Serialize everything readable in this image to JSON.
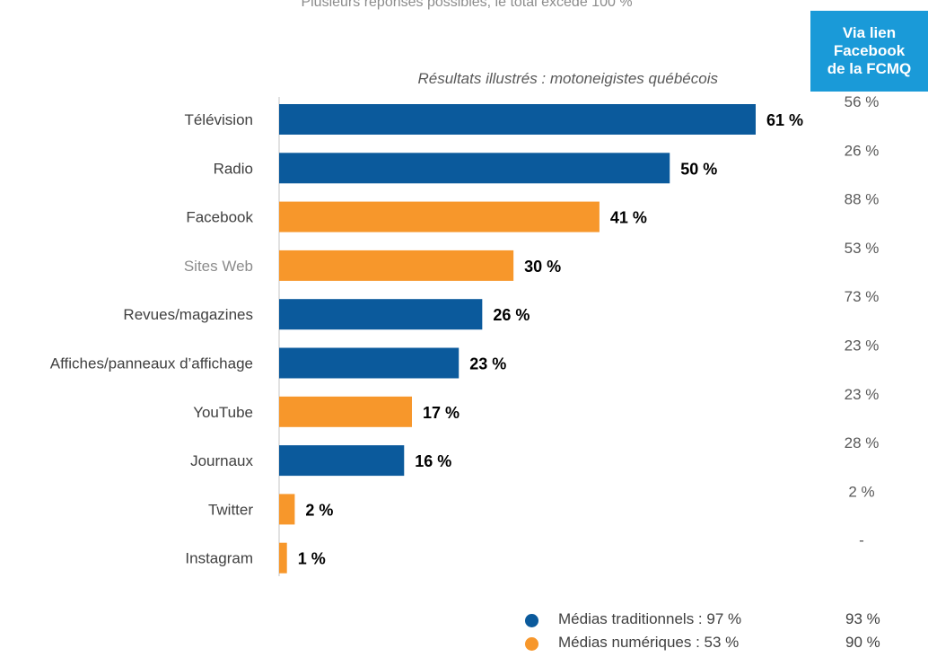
{
  "header": {
    "note": "Plusieurs réponses possibles, le total excède 100 %",
    "subtitle": "Résultats illustrés : motoneigistes québécois",
    "fb_box_lines": [
      "Via lien",
      "Facebook",
      "de la FCMQ"
    ]
  },
  "colors": {
    "traditional": "#0b5a9c",
    "digital": "#f7972b",
    "fb_box": "#1a9ad8"
  },
  "chart_data": {
    "type": "bar",
    "orientation": "horizontal",
    "categories": [
      "Télévision",
      "Radio",
      "Facebook",
      "Sites Web",
      "Revues/magazines",
      "Affiches/panneaux d’affichage",
      "YouTube",
      "Journaux",
      "Twitter",
      "Instagram"
    ],
    "values": [
      61,
      50,
      41,
      30,
      26,
      23,
      17,
      16,
      2,
      1
    ],
    "value_labels": [
      "61 %",
      "50 %",
      "41 %",
      "30 %",
      "26 %",
      "23 %",
      "17 %",
      "16 %",
      "2 %",
      "1 %"
    ],
    "groups": [
      "traditional",
      "traditional",
      "digital",
      "digital",
      "traditional",
      "traditional",
      "digital",
      "traditional",
      "digital",
      "digital"
    ],
    "facebook_column": [
      "56 %",
      "26 %",
      "88 %",
      "53 %",
      "73 %",
      "23 %",
      "23 %",
      "28 %",
      "2 %",
      "-"
    ],
    "xlim": [
      0,
      61
    ],
    "grid": false
  },
  "legend": {
    "items": [
      {
        "label": "Médias traditionnels : 97 %",
        "facebook_value": "93 %",
        "group": "traditional"
      },
      {
        "label": "Médias numériques : 53 %",
        "facebook_value": "90 %",
        "group": "digital"
      }
    ]
  }
}
